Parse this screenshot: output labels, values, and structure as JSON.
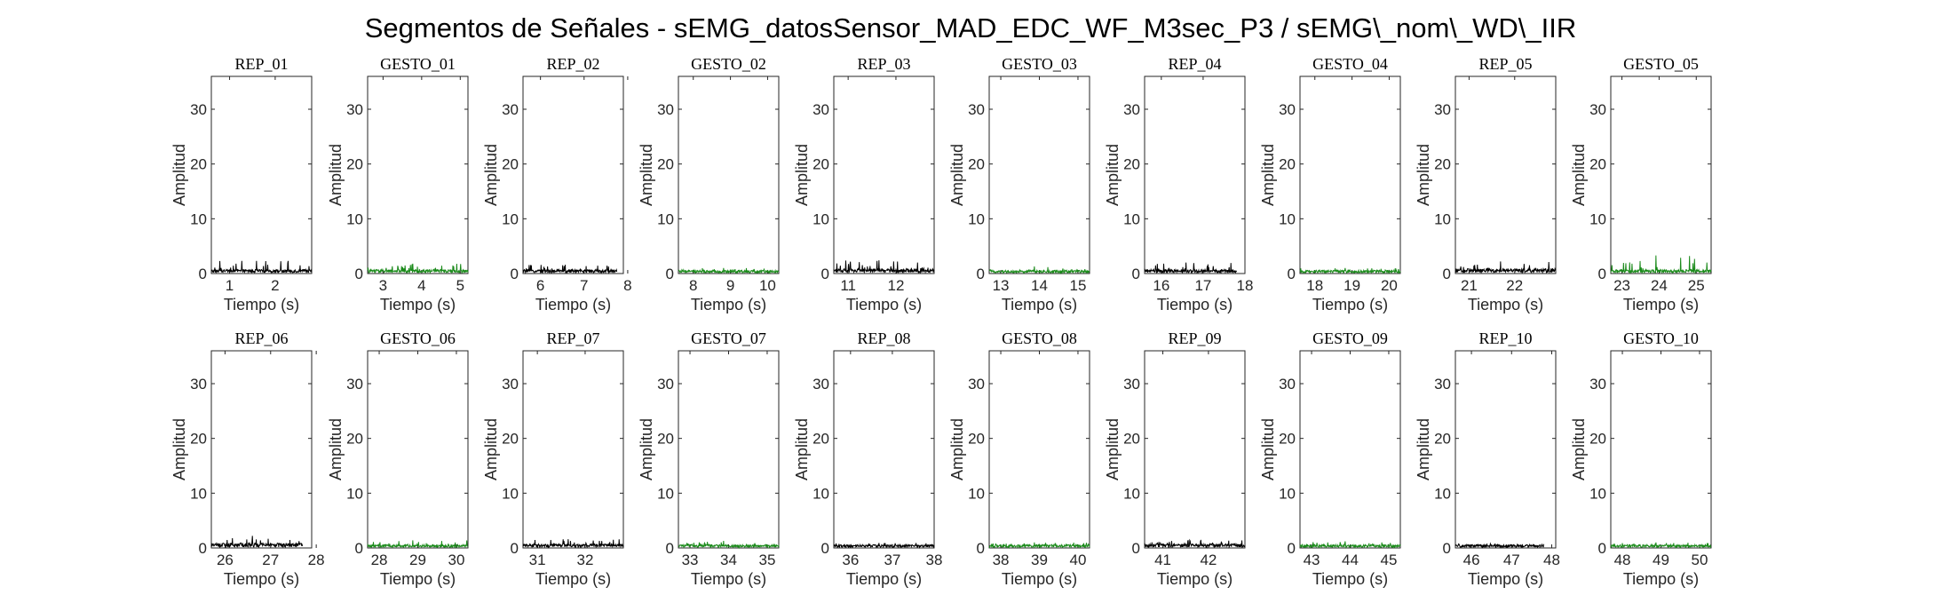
{
  "figure": {
    "suptitle": "Segmentos de Señales - sEMG_datosSensor_MAD_EDC_WF_M3sec_P3 / sEMG\\_nom\\_WD\\_IIR"
  },
  "colors": {
    "rep": "#000000",
    "gesto": "#1a8a1a",
    "axes": "#262626"
  },
  "chart_data": [
    {
      "type": "line",
      "title": "REP_01",
      "xlabel": "Tiempo (s)",
      "ylabel": "Amplitud",
      "xlim": [
        0.6,
        2.8
      ],
      "ylim": [
        0,
        36
      ],
      "xticks": [
        1,
        2
      ],
      "yticks": [
        0,
        10,
        20,
        30
      ],
      "series": [
        {
          "color": "#000000",
          "x": [
            0.6,
            2.8
          ],
          "y_baseline": 0.5,
          "y_peak": 2.3
        }
      ]
    },
    {
      "type": "line",
      "title": "GESTO_01",
      "xlabel": "Tiempo (s)",
      "ylabel": "Amplitud",
      "xlim": [
        2.6,
        5.2
      ],
      "ylim": [
        0,
        36
      ],
      "xticks": [
        3,
        4,
        5
      ],
      "yticks": [
        0,
        10,
        20,
        30
      ],
      "series": [
        {
          "color": "#1a8a1a",
          "x": [
            2.6,
            5.2
          ],
          "y_baseline": 0.5,
          "y_peak": 1.8
        }
      ]
    },
    {
      "type": "line",
      "title": "REP_02",
      "xlabel": "Tiempo (s)",
      "ylabel": "Amplitud",
      "xlim": [
        5.6,
        7.9
      ],
      "ylim": [
        0,
        36
      ],
      "xticks": [
        6,
        7,
        8
      ],
      "yticks": [
        0,
        10,
        20,
        30
      ],
      "series": [
        {
          "color": "#000000",
          "x": [
            5.6,
            7.75
          ],
          "y_baseline": 0.5,
          "y_peak": 1.6
        }
      ]
    },
    {
      "type": "line",
      "title": "GESTO_02",
      "xlabel": "Tiempo (s)",
      "ylabel": "Amplitud",
      "xlim": [
        7.6,
        10.3
      ],
      "ylim": [
        0,
        36
      ],
      "xticks": [
        8,
        9,
        10
      ],
      "yticks": [
        0,
        10,
        20,
        30
      ],
      "series": [
        {
          "color": "#1a8a1a",
          "x": [
            7.6,
            10.3
          ],
          "y_baseline": 0.4,
          "y_peak": 1.0
        }
      ]
    },
    {
      "type": "line",
      "title": "REP_03",
      "xlabel": "Tiempo (s)",
      "ylabel": "Amplitud",
      "xlim": [
        10.7,
        12.8
      ],
      "ylim": [
        0,
        36
      ],
      "xticks": [
        11,
        12
      ],
      "yticks": [
        0,
        10,
        20,
        30
      ],
      "series": [
        {
          "color": "#000000",
          "x": [
            10.7,
            12.8
          ],
          "y_baseline": 0.6,
          "y_peak": 2.4
        }
      ]
    },
    {
      "type": "line",
      "title": "GESTO_03",
      "xlabel": "Tiempo (s)",
      "ylabel": "Amplitud",
      "xlim": [
        12.7,
        15.3
      ],
      "ylim": [
        0,
        36
      ],
      "xticks": [
        13,
        14,
        15
      ],
      "yticks": [
        0,
        10,
        20,
        30
      ],
      "series": [
        {
          "color": "#1a8a1a",
          "x": [
            12.7,
            15.3
          ],
          "y_baseline": 0.4,
          "y_peak": 1.3
        }
      ]
    },
    {
      "type": "line",
      "title": "REP_04",
      "xlabel": "Tiempo (s)",
      "ylabel": "Amplitud",
      "xlim": [
        15.6,
        18.0
      ],
      "ylim": [
        0,
        36
      ],
      "xticks": [
        16,
        17,
        18
      ],
      "yticks": [
        0,
        10,
        20,
        30
      ],
      "series": [
        {
          "color": "#000000",
          "x": [
            15.6,
            17.8
          ],
          "y_baseline": 0.5,
          "y_peak": 2.0
        }
      ]
    },
    {
      "type": "line",
      "title": "GESTO_04",
      "xlabel": "Tiempo (s)",
      "ylabel": "Amplitud",
      "xlim": [
        17.6,
        20.3
      ],
      "ylim": [
        0,
        36
      ],
      "xticks": [
        18,
        19,
        20
      ],
      "yticks": [
        0,
        10,
        20,
        30
      ],
      "series": [
        {
          "color": "#1a8a1a",
          "x": [
            17.6,
            20.3
          ],
          "y_baseline": 0.4,
          "y_peak": 1.0
        }
      ]
    },
    {
      "type": "line",
      "title": "REP_05",
      "xlabel": "Tiempo (s)",
      "ylabel": "Amplitud",
      "xlim": [
        20.7,
        22.9
      ],
      "ylim": [
        0,
        36
      ],
      "xticks": [
        21,
        22
      ],
      "yticks": [
        0,
        10,
        20,
        30
      ],
      "series": [
        {
          "color": "#000000",
          "x": [
            20.7,
            22.9
          ],
          "y_baseline": 0.6,
          "y_peak": 2.2
        }
      ]
    },
    {
      "type": "line",
      "title": "GESTO_05",
      "xlabel": "Tiempo (s)",
      "ylabel": "Amplitud",
      "xlim": [
        22.7,
        25.4
      ],
      "ylim": [
        0,
        36
      ],
      "xticks": [
        23,
        24,
        25
      ],
      "yticks": [
        0,
        10,
        20,
        30
      ],
      "series": [
        {
          "color": "#1a8a1a",
          "x": [
            22.7,
            25.4
          ],
          "y_baseline": 0.5,
          "y_peak": 3.3
        }
      ]
    },
    {
      "type": "line",
      "title": "REP_06",
      "xlabel": "Tiempo (s)",
      "ylabel": "Amplitud",
      "xlim": [
        25.7,
        27.9
      ],
      "ylim": [
        0,
        36
      ],
      "xticks": [
        26,
        27,
        28
      ],
      "yticks": [
        0,
        10,
        20,
        30
      ],
      "series": [
        {
          "color": "#000000",
          "x": [
            25.7,
            27.7
          ],
          "y_baseline": 0.6,
          "y_peak": 2.2
        }
      ]
    },
    {
      "type": "line",
      "title": "GESTO_06",
      "xlabel": "Tiempo (s)",
      "ylabel": "Amplitud",
      "xlim": [
        27.7,
        30.3
      ],
      "ylim": [
        0,
        36
      ],
      "xticks": [
        28,
        29,
        30
      ],
      "yticks": [
        0,
        10,
        20,
        30
      ],
      "series": [
        {
          "color": "#1a8a1a",
          "x": [
            27.7,
            30.3
          ],
          "y_baseline": 0.4,
          "y_peak": 1.4
        }
      ]
    },
    {
      "type": "line",
      "title": "REP_07",
      "xlabel": "Tiempo (s)",
      "ylabel": "Amplitud",
      "xlim": [
        30.7,
        32.8
      ],
      "ylim": [
        0,
        36
      ],
      "xticks": [
        31,
        32
      ],
      "yticks": [
        0,
        10,
        20,
        30
      ],
      "series": [
        {
          "color": "#000000",
          "x": [
            30.7,
            32.8
          ],
          "y_baseline": 0.5,
          "y_peak": 1.6
        }
      ]
    },
    {
      "type": "line",
      "title": "GESTO_07",
      "xlabel": "Tiempo (s)",
      "ylabel": "Amplitud",
      "xlim": [
        32.7,
        35.3
      ],
      "ylim": [
        0,
        36
      ],
      "xticks": [
        33,
        34,
        35
      ],
      "yticks": [
        0,
        10,
        20,
        30
      ],
      "series": [
        {
          "color": "#1a8a1a",
          "x": [
            32.7,
            35.3
          ],
          "y_baseline": 0.4,
          "y_peak": 1.3
        }
      ]
    },
    {
      "type": "line",
      "title": "REP_08",
      "xlabel": "Tiempo (s)",
      "ylabel": "Amplitud",
      "xlim": [
        35.6,
        38.0
      ],
      "ylim": [
        0,
        36
      ],
      "xticks": [
        36,
        37,
        38
      ],
      "yticks": [
        0,
        10,
        20,
        30
      ],
      "series": [
        {
          "color": "#000000",
          "x": [
            35.6,
            38.0
          ],
          "y_baseline": 0.4,
          "y_peak": 0.9
        }
      ]
    },
    {
      "type": "line",
      "title": "GESTO_08",
      "xlabel": "Tiempo (s)",
      "ylabel": "Amplitud",
      "xlim": [
        37.7,
        40.3
      ],
      "ylim": [
        0,
        36
      ],
      "xticks": [
        38,
        39,
        40
      ],
      "yticks": [
        0,
        10,
        20,
        30
      ],
      "series": [
        {
          "color": "#1a8a1a",
          "x": [
            37.7,
            40.3
          ],
          "y_baseline": 0.4,
          "y_peak": 1.0
        }
      ]
    },
    {
      "type": "line",
      "title": "REP_09",
      "xlabel": "Tiempo (s)",
      "ylabel": "Amplitud",
      "xlim": [
        40.6,
        42.8
      ],
      "ylim": [
        0,
        36
      ],
      "xticks": [
        41,
        42
      ],
      "yticks": [
        0,
        10,
        20,
        30
      ],
      "series": [
        {
          "color": "#000000",
          "x": [
            40.6,
            42.8
          ],
          "y_baseline": 0.5,
          "y_peak": 1.4
        }
      ]
    },
    {
      "type": "line",
      "title": "GESTO_09",
      "xlabel": "Tiempo (s)",
      "ylabel": "Amplitud",
      "xlim": [
        42.7,
        45.3
      ],
      "ylim": [
        0,
        36
      ],
      "xticks": [
        43,
        44,
        45
      ],
      "yticks": [
        0,
        10,
        20,
        30
      ],
      "series": [
        {
          "color": "#1a8a1a",
          "x": [
            42.7,
            45.3
          ],
          "y_baseline": 0.4,
          "y_peak": 1.2
        }
      ]
    },
    {
      "type": "line",
      "title": "REP_10",
      "xlabel": "Tiempo (s)",
      "ylabel": "Amplitud",
      "xlim": [
        45.6,
        48.1
      ],
      "ylim": [
        0,
        36
      ],
      "xticks": [
        46,
        47,
        48
      ],
      "yticks": [
        0,
        10,
        20,
        30
      ],
      "series": [
        {
          "color": "#000000",
          "x": [
            45.6,
            47.8
          ],
          "y_baseline": 0.4,
          "y_peak": 0.8
        }
      ]
    },
    {
      "type": "line",
      "title": "GESTO_10",
      "xlabel": "Tiempo (s)",
      "ylabel": "Amplitud",
      "xlim": [
        47.7,
        50.3
      ],
      "ylim": [
        0,
        36
      ],
      "xticks": [
        48,
        49,
        50
      ],
      "yticks": [
        0,
        10,
        20,
        30
      ],
      "series": [
        {
          "color": "#1a8a1a",
          "x": [
            47.7,
            50.3
          ],
          "y_baseline": 0.4,
          "y_peak": 1.0
        }
      ]
    }
  ]
}
